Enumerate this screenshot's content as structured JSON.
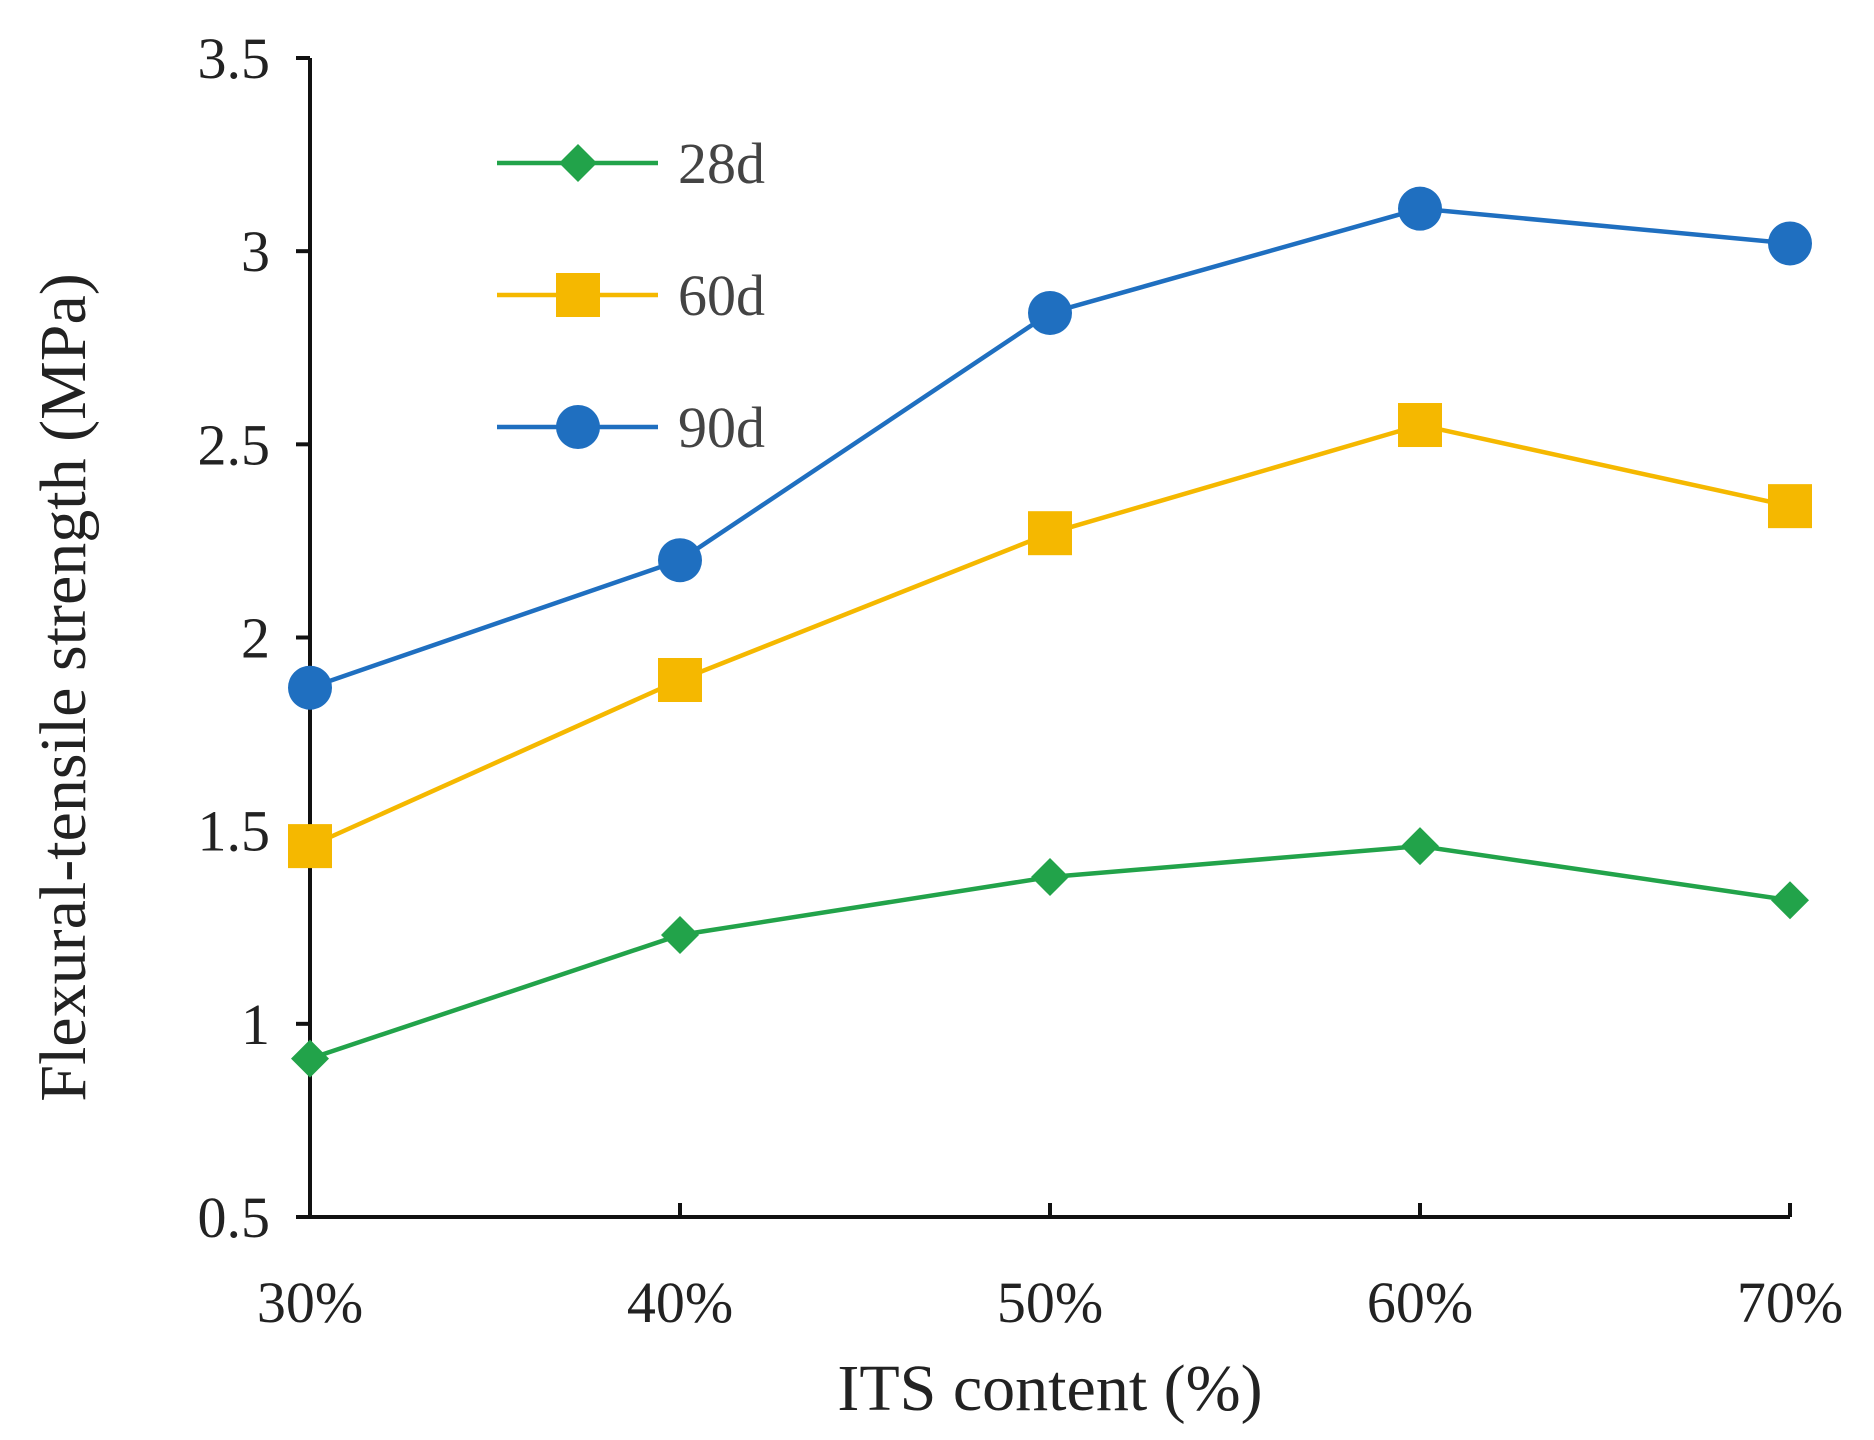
{
  "chart_data": {
    "type": "line",
    "title": "",
    "xlabel": "ITS content (%)",
    "ylabel": "Flexural-tensile strength (MPa)",
    "categories": [
      "30%",
      "40%",
      "50%",
      "60%",
      "70%"
    ],
    "ylim": [
      0.5,
      3.5
    ],
    "yticks": [
      0.5,
      1,
      1.5,
      2,
      2.5,
      3,
      3.5
    ],
    "ytick_labels": [
      "0.5",
      "1",
      "1.5",
      "2",
      "2.5",
      "3",
      "3.5"
    ],
    "grid": false,
    "legend_position": "top-left",
    "series": [
      {
        "name": "28d",
        "marker": "diamond",
        "color": "#22a34a",
        "values": [
          0.91,
          1.23,
          1.38,
          1.46,
          1.32
        ]
      },
      {
        "name": "60d",
        "marker": "square",
        "color": "#f5b800",
        "values": [
          1.46,
          1.89,
          2.27,
          2.55,
          2.34
        ]
      },
      {
        "name": "90d",
        "marker": "circle",
        "color": "#1f6fc0",
        "values": [
          1.87,
          2.2,
          2.84,
          3.11,
          3.02
        ]
      }
    ]
  }
}
